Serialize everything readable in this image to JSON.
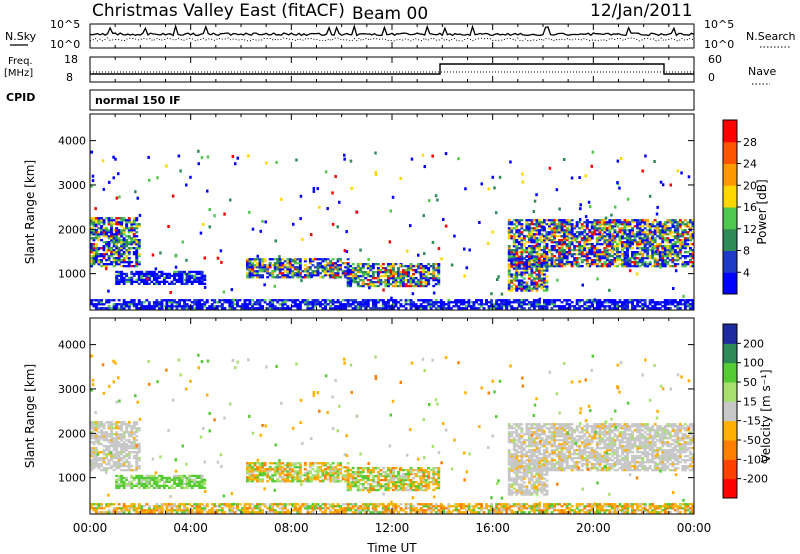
{
  "header": {
    "station": "Christmas Valley East (fitACF)",
    "beam": "Beam 00",
    "date": "12/Jan/2011"
  },
  "top_panels": {
    "nsky_label": "N.Sky",
    "nsearch_label": "N.Search",
    "noise_ticks_left": [
      "10^5",
      "10^0"
    ],
    "noise_ticks_right": [
      "10^5",
      "10^0"
    ],
    "freq_label": "Freq.",
    "freq_unit": "[MHz]",
    "freq_ticks": [
      "18",
      "8"
    ],
    "nave_label": "Nave",
    "nave_ticks": [
      "60",
      "0"
    ],
    "cpid_label": "CPID",
    "cpid_value": "normal 150 IF"
  },
  "chart_data": [
    {
      "type": "heatmap",
      "name": "power",
      "ylabel": "Slant Range [km]",
      "ylim": [
        180,
        4600
      ],
      "yticks": [
        1000,
        2000,
        3000,
        4000
      ],
      "xlim": [
        0,
        24
      ],
      "colorbar_label": "Power [dB]",
      "colorbar_ticks": [
        "4",
        "8",
        "12",
        "16",
        "20",
        "24",
        "28"
      ],
      "colorbar_colors": [
        "#0000ff",
        "#1e3cc8",
        "#2e8b57",
        "#50c850",
        "#ffd700",
        "#ff9900",
        "#ff5500",
        "#ff0000"
      ],
      "patches": [
        {
          "t0": 0.0,
          "t1": 2.0,
          "r0": 1150,
          "r1": 2250,
          "level": "mid"
        },
        {
          "t0": 1.0,
          "t1": 4.6,
          "r0": 750,
          "r1": 1050,
          "level": "low"
        },
        {
          "t0": 6.2,
          "t1": 10.2,
          "r0": 900,
          "r1": 1350,
          "level": "high"
        },
        {
          "t0": 10.2,
          "t1": 13.8,
          "r0": 700,
          "r1": 1200,
          "level": "high"
        },
        {
          "t0": 16.6,
          "t1": 24.0,
          "r0": 1150,
          "r1": 2200,
          "level": "high"
        },
        {
          "t0": 16.6,
          "t1": 18.2,
          "r0": 600,
          "r1": 1400,
          "level": "high"
        },
        {
          "t0": 0.0,
          "t1": 24.0,
          "r0": 200,
          "r1": 420,
          "level": "low"
        }
      ]
    },
    {
      "type": "heatmap",
      "name": "velocity",
      "ylabel": "Slant Range [km]",
      "ylim": [
        180,
        4600
      ],
      "yticks": [
        1000,
        2000,
        3000,
        4000
      ],
      "xlim": [
        0,
        24
      ],
      "colorbar_label": "Velocity [m s⁻¹]",
      "colorbar_ticks": [
        "200",
        "100",
        "50",
        "15",
        "-15",
        "-50",
        "-100",
        "-200"
      ],
      "colorbar_colors": [
        "#1e2aa0",
        "#2e8b57",
        "#55cc33",
        "#a8e070",
        "#c8c8c8",
        "#ffb000",
        "#ff8000",
        "#ff4000",
        "#ff0000"
      ],
      "patches": [
        {
          "t0": 0.0,
          "t1": 2.0,
          "r0": 1150,
          "r1": 2250,
          "level": "grey"
        },
        {
          "t0": 1.0,
          "t1": 4.6,
          "r0": 750,
          "r1": 1050,
          "level": "green"
        },
        {
          "t0": 6.2,
          "t1": 10.2,
          "r0": 900,
          "r1": 1350,
          "level": "mixed"
        },
        {
          "t0": 10.2,
          "t1": 13.8,
          "r0": 700,
          "r1": 1200,
          "level": "mixed"
        },
        {
          "t0": 16.6,
          "t1": 24.0,
          "r0": 1150,
          "r1": 2200,
          "level": "grey"
        },
        {
          "t0": 16.6,
          "t1": 18.2,
          "r0": 600,
          "r1": 1400,
          "level": "grey"
        },
        {
          "t0": 0.0,
          "t1": 24.0,
          "r0": 200,
          "r1": 420,
          "level": "ground"
        }
      ]
    }
  ],
  "x_axis": {
    "ticks": [
      "00:00",
      "04:00",
      "08:00",
      "12:00",
      "16:00",
      "20:00",
      "00:00"
    ],
    "label": "Time UT"
  }
}
